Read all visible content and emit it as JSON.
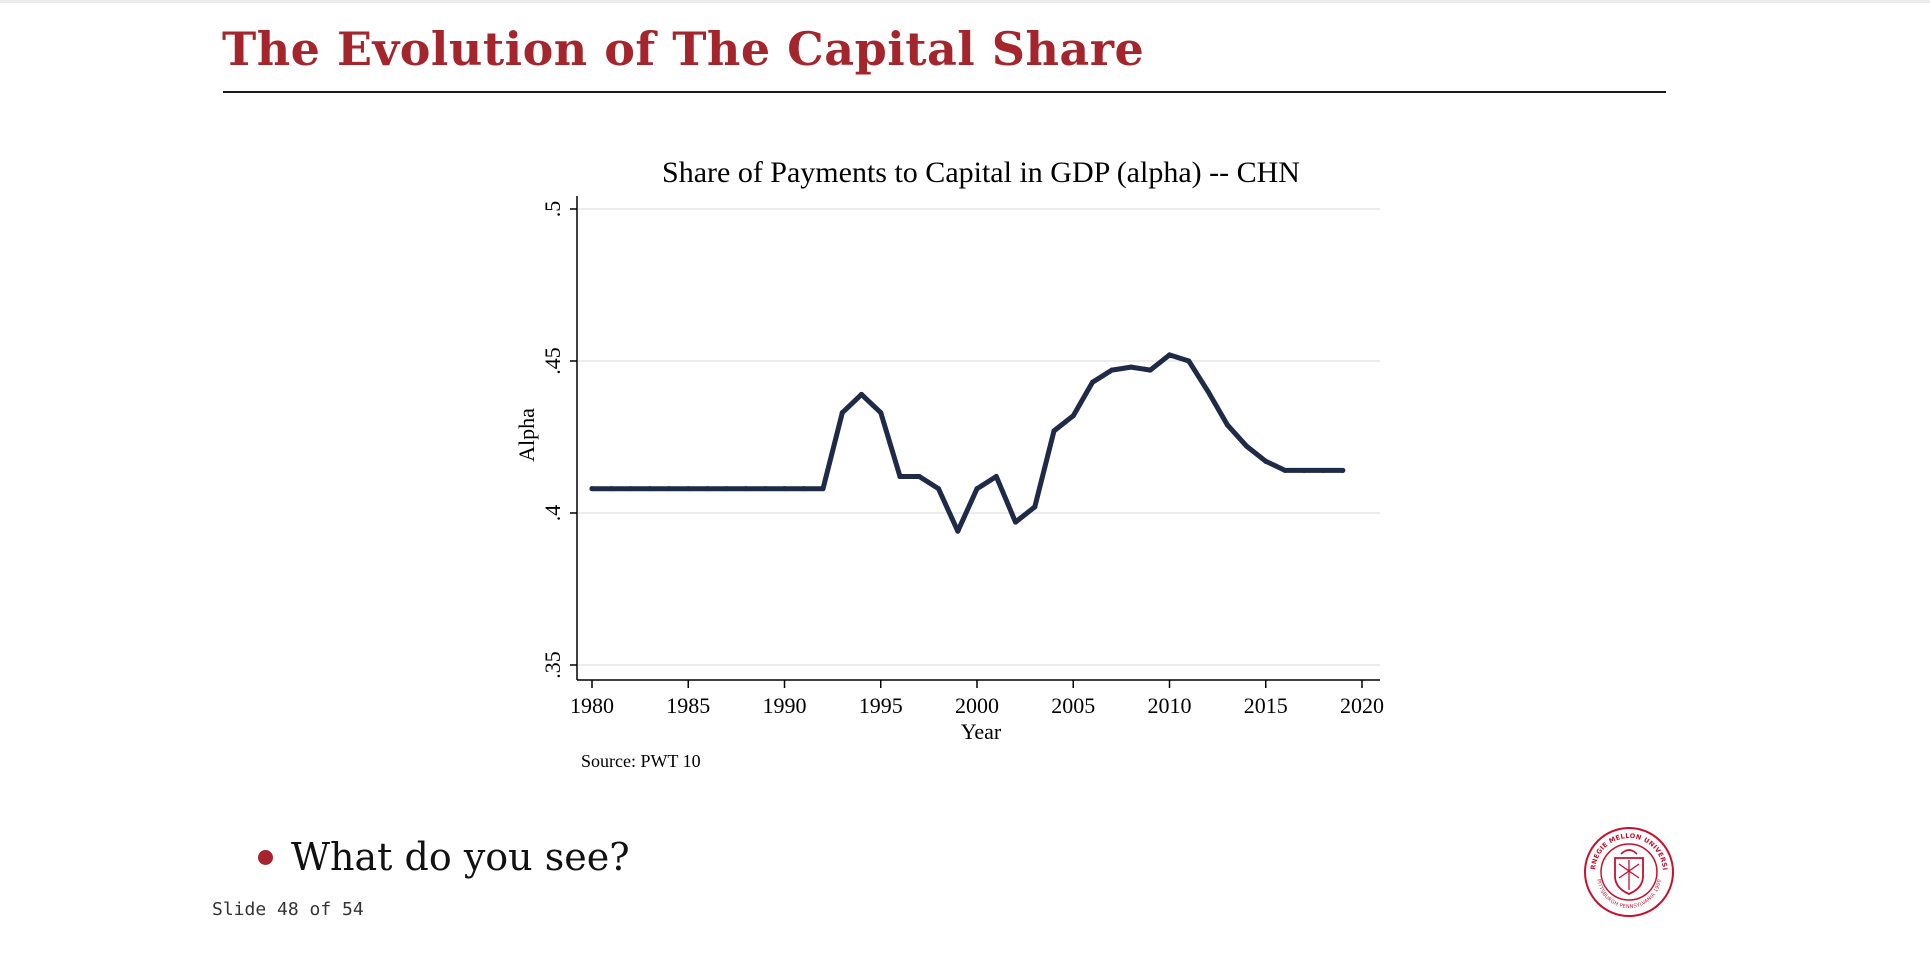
{
  "slide": {
    "title": "The Evolution of The Capital Share",
    "bullet": "What do you see?",
    "counter": "Slide 48 of 54"
  },
  "logo": {
    "name": "Carnegie Mellon University seal",
    "text_top": "CARNEGIE MELLON UNIVERSITY",
    "text_bottom": "PITTSBURGH PENNSYLVANIA 1900",
    "color": "#c8102e"
  },
  "colors": {
    "accent": "#a4262c",
    "line": "#1f2a48",
    "grid": "#e6e6e6"
  },
  "chart_data": {
    "type": "line",
    "title": "Share of Payments to Capital in GDP (alpha) -- CHN",
    "xlabel": "Year",
    "ylabel": "Alpha",
    "note": "Source: PWT 10",
    "xlim": [
      1980,
      2020
    ],
    "ylim": [
      0.35,
      0.5
    ],
    "xticks": [
      1980,
      1985,
      1990,
      1995,
      2000,
      2005,
      2010,
      2015,
      2020
    ],
    "yticks": [
      {
        "value": 0.35,
        "label": ".35"
      },
      {
        "value": 0.4,
        "label": ".4"
      },
      {
        "value": 0.45,
        "label": ".45"
      },
      {
        "value": 0.5,
        "label": ".5"
      }
    ],
    "grid": true,
    "series": [
      {
        "x": [
          1980,
          1981,
          1982,
          1983,
          1984,
          1985,
          1986,
          1987,
          1988,
          1989,
          1990,
          1991,
          1992,
          1993,
          1994,
          1995,
          1996,
          1997,
          1998,
          1999,
          2000,
          2001,
          2002,
          2003,
          2004,
          2005,
          2006,
          2007,
          2008,
          2009,
          2010,
          2011,
          2012,
          2013,
          2014,
          2015,
          2016,
          2017,
          2018,
          2019
        ],
        "y": [
          0.408,
          0.408,
          0.408,
          0.408,
          0.408,
          0.408,
          0.408,
          0.408,
          0.408,
          0.408,
          0.408,
          0.408,
          0.408,
          0.433,
          0.439,
          0.433,
          0.412,
          0.412,
          0.408,
          0.394,
          0.408,
          0.412,
          0.397,
          0.402,
          0.427,
          0.432,
          0.443,
          0.447,
          0.448,
          0.447,
          0.452,
          0.45,
          0.44,
          0.429,
          0.422,
          0.417,
          0.414,
          0.414,
          0.414,
          0.414
        ]
      }
    ]
  }
}
